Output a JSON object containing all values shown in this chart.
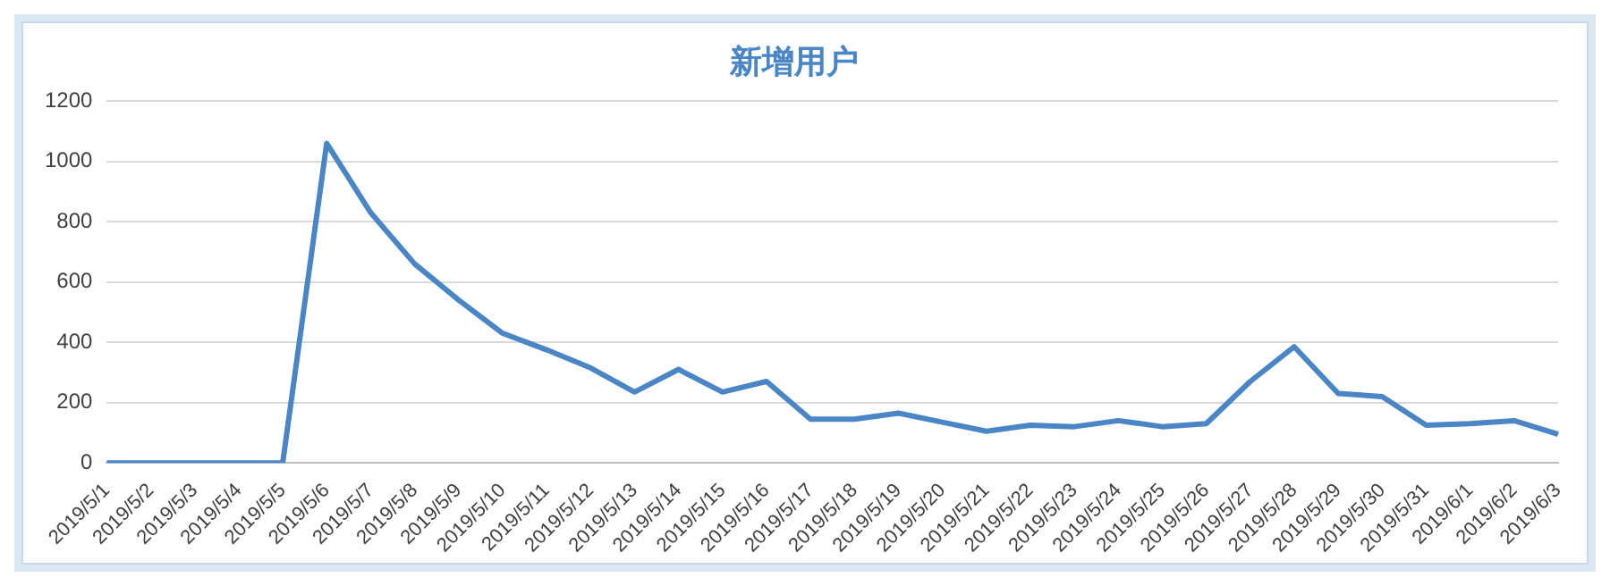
{
  "chart_data": {
    "type": "line",
    "title": "新增用户",
    "categories": [
      "2019/5/1",
      "2019/5/2",
      "2019/5/3",
      "2019/5/4",
      "2019/5/5",
      "2019/5/6",
      "2019/5/7",
      "2019/5/8",
      "2019/5/9",
      "2019/5/10",
      "2019/5/11",
      "2019/5/12",
      "2019/5/13",
      "2019/5/14",
      "2019/5/15",
      "2019/5/16",
      "2019/5/17",
      "2019/5/18",
      "2019/5/19",
      "2019/5/20",
      "2019/5/21",
      "2019/5/22",
      "2019/5/23",
      "2019/5/24",
      "2019/5/25",
      "2019/5/26",
      "2019/5/27",
      "2019/5/28",
      "2019/5/29",
      "2019/5/30",
      "2019/5/31",
      "2019/6/1",
      "2019/6/2",
      "2019/6/3"
    ],
    "series": [
      {
        "color": "#4a86c5",
        "values": [
          0,
          0,
          0,
          0,
          0,
          1060,
          830,
          660,
          540,
          430,
          375,
          315,
          235,
          310,
          235,
          270,
          145,
          145,
          165,
          135,
          105,
          125,
          120,
          140,
          120,
          130,
          270,
          385,
          230,
          220,
          125,
          130,
          140,
          95
        ]
      }
    ],
    "ylim": [
      0,
      1200
    ],
    "yticks": [
      0,
      200,
      400,
      600,
      800,
      1000,
      1200
    ],
    "grid": "y",
    "legend": false,
    "marker": "none",
    "line_style": "solid"
  }
}
